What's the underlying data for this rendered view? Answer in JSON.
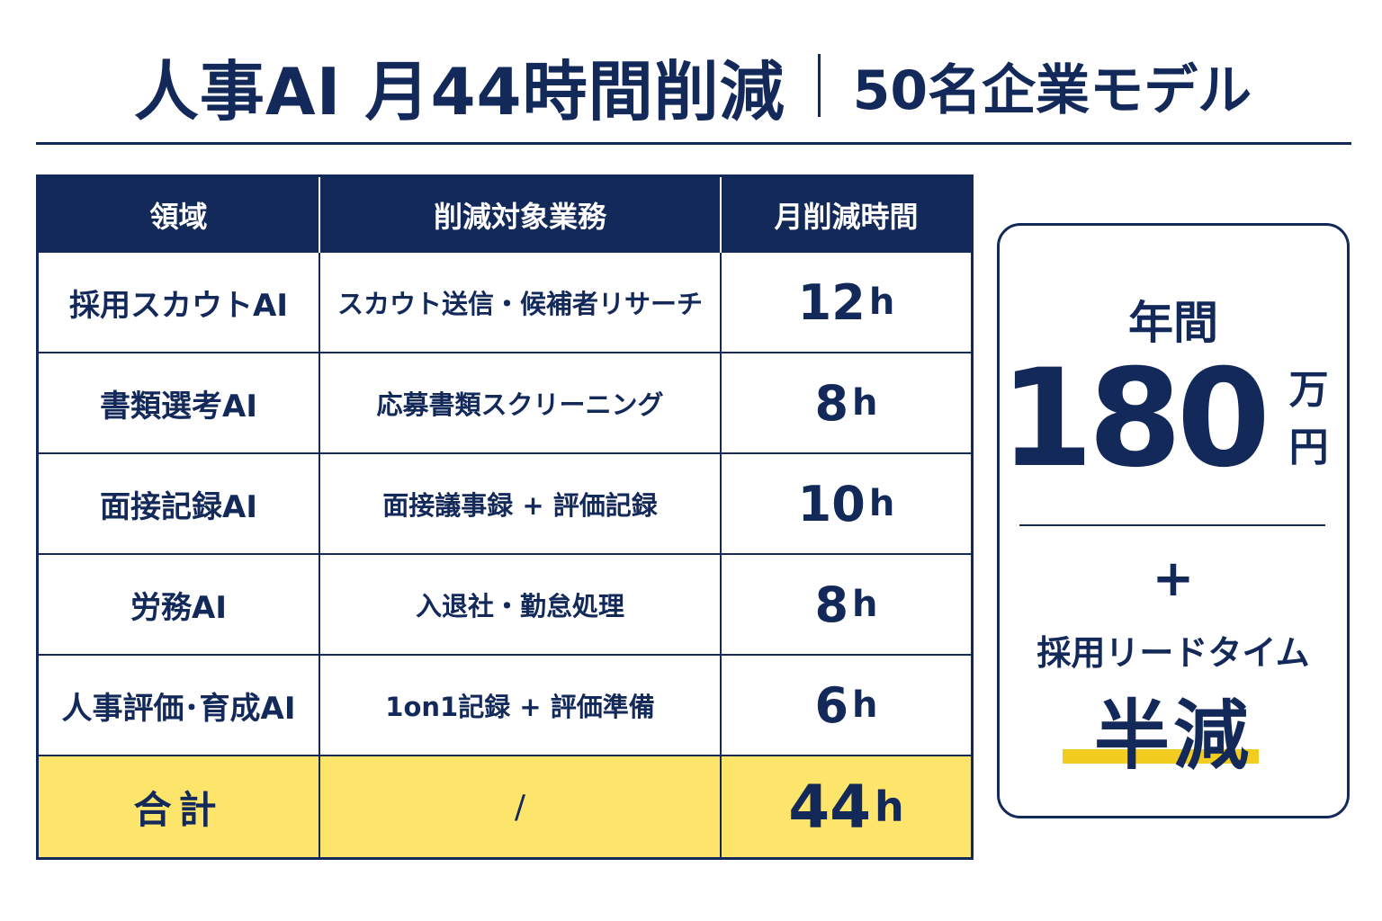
{
  "title": {
    "main": "人事AI 月44時間削減",
    "sub": "50名企業モデル"
  },
  "table": {
    "headers": [
      "領域",
      "削減対象業務",
      "月削減時間"
    ],
    "rows": [
      {
        "area": "採用スカウトAI",
        "task": "スカウト送信・候補者リサーチ",
        "hours": "12",
        "unit": "h"
      },
      {
        "area": "書類選考AI",
        "task": "応募書類スクリーニング",
        "hours": "8",
        "unit": "h"
      },
      {
        "area": "面接記録AI",
        "task": "面接議事録 + 評価記録",
        "hours": "10",
        "unit": "h"
      },
      {
        "area": "労務AI",
        "task": "入退社・勤怠処理",
        "hours": "8",
        "unit": "h"
      },
      {
        "area": "人事評価･育成AI",
        "task": "1on1記録 + 評価準備",
        "hours": "6",
        "unit": "h"
      }
    ],
    "total": {
      "area": "合計",
      "task": "/",
      "hours": "44",
      "unit": "h"
    }
  },
  "summary": {
    "annual_label": "年間",
    "amount": "180",
    "amount_unit": "万円",
    "plus": "+",
    "lead_label": "採用リードタイム",
    "half": "半減"
  },
  "colors": {
    "navy": "#13295a",
    "highlight_yellow": "#fde46b",
    "underline_yellow": "#f2cc1f"
  }
}
